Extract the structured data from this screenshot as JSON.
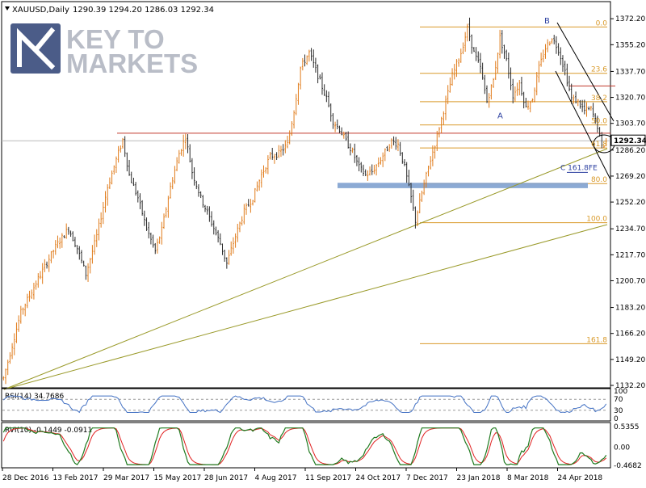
{
  "header": {
    "symbol": "XAUUSD,Daily",
    "ohlc": "1290.39 1294.20 1286.03 1292.34"
  },
  "logo": {
    "line1": "KEY TO",
    "line2": "MARKETS"
  },
  "colors": {
    "background": "#ffffff",
    "bull": "#e07b1a",
    "bear": "#2a2a2a",
    "fib": "#d99a2a",
    "resistance": "#c0392b",
    "support_zone": "#7fa1cf",
    "trendline": "#9a9a2a",
    "channel": "#000000",
    "rsi": "#4472c4",
    "rvi_main": "#1f7a1f",
    "rvi_signal": "#e02020",
    "axis": "#000000",
    "logo_blue": "#2b3f73"
  },
  "chart_data": [
    {
      "type": "candlestick",
      "title": "XAUUSD,Daily",
      "ohlc_last": {
        "open": 1290.39,
        "high": 1294.2,
        "low": 1286.03,
        "close": 1292.34
      },
      "current_price": "1292.34",
      "ylim": [
        1132.2,
        1376.0
      ],
      "y_ticks": [
        "1372.20",
        "1355.20",
        "1337.70",
        "1320.70",
        "1303.70",
        "1286.20",
        "1269.20",
        "1252.20",
        "1234.70",
        "1217.70",
        "1200.70",
        "1183.20",
        "1166.20",
        "1149.20",
        "1132.20"
      ],
      "x_ticks": [
        "28 Dec 2016",
        "13 Feb 2017",
        "29 Mar 2017",
        "15 May 2017",
        "28 Jun 2017",
        "4 Aug 2017",
        "11 Sep 2017",
        "24 Oct 2017",
        "7 Dec 2017",
        "23 Jan 2018",
        "8 Mar 2018",
        "24 Apr 2018"
      ],
      "price_path": [
        [
          0,
          1137
        ],
        [
          8,
          1180
        ],
        [
          16,
          1202
        ],
        [
          24,
          1223
        ],
        [
          30,
          1235
        ],
        [
          34,
          1222
        ],
        [
          38,
          1205
        ],
        [
          43,
          1230
        ],
        [
          48,
          1262
        ],
        [
          52,
          1280
        ],
        [
          55,
          1293
        ],
        [
          58,
          1270
        ],
        [
          62,
          1255
        ],
        [
          66,
          1235
        ],
        [
          70,
          1220
        ],
        [
          73,
          1234
        ],
        [
          77,
          1262
        ],
        [
          81,
          1284
        ],
        [
          84,
          1295
        ],
        [
          87,
          1272
        ],
        [
          91,
          1255
        ],
        [
          95,
          1242
        ],
        [
          100,
          1225
        ],
        [
          103,
          1212
        ],
        [
          107,
          1230
        ],
        [
          111,
          1246
        ],
        [
          115,
          1255
        ],
        [
          119,
          1270
        ],
        [
          123,
          1282
        ],
        [
          127,
          1284
        ],
        [
          131,
          1290
        ],
        [
          134,
          1312
        ],
        [
          137,
          1340
        ],
        [
          141,
          1350
        ],
        [
          145,
          1335
        ],
        [
          149,
          1320
        ],
        [
          152,
          1305
        ],
        [
          155,
          1300
        ],
        [
          158,
          1292
        ],
        [
          161,
          1285
        ],
        [
          164,
          1275
        ],
        [
          167,
          1270
        ],
        [
          170,
          1272
        ],
        [
          173,
          1278
        ],
        [
          176,
          1285
        ],
        [
          179,
          1292
        ],
        [
          182,
          1290
        ],
        [
          185,
          1275
        ],
        [
          188,
          1255
        ],
        [
          190,
          1240
        ],
        [
          193,
          1258
        ],
        [
          196,
          1275
        ],
        [
          199,
          1290
        ],
        [
          203,
          1312
        ],
        [
          207,
          1335
        ],
        [
          211,
          1350
        ],
        [
          214,
          1366
        ],
        [
          217,
          1350
        ],
        [
          220,
          1340
        ],
        [
          223,
          1318
        ],
        [
          226,
          1332
        ],
        [
          229,
          1360
        ],
        [
          232,
          1345
        ],
        [
          235,
          1322
        ],
        [
          238,
          1330
        ],
        [
          241,
          1314
        ],
        [
          244,
          1320
        ],
        [
          247,
          1340
        ],
        [
          250,
          1353
        ],
        [
          253,
          1360
        ],
        [
          256,
          1352
        ],
        [
          259,
          1338
        ],
        [
          262,
          1320
        ],
        [
          265,
          1318
        ],
        [
          268,
          1312
        ],
        [
          271,
          1313
        ],
        [
          274,
          1302
        ],
        [
          276,
          1288
        ],
        [
          278,
          1292
        ]
      ],
      "fibonacci_levels": [
        {
          "label": "0.0",
          "price": 1366.8
        },
        {
          "label": "23.6",
          "price": 1336.5
        },
        {
          "label": "38.2",
          "price": 1317.9
        },
        {
          "label": "50.0",
          "price": 1302.7
        },
        {
          "label": "61.8",
          "price": 1287.6
        },
        {
          "label": "80.0",
          "price": 1264.3
        },
        {
          "label": "100.0",
          "price": 1238.7
        },
        {
          "label": "161.8",
          "price": 1159.5
        }
      ],
      "horizontal_resistance": 1297.3,
      "short_resistance": 1328.2,
      "support_zone": [
        1261.3,
        1264.8
      ],
      "annotations": [
        {
          "text": "B",
          "at_price": 1369.0
        },
        {
          "text": "A",
          "at_price": 1307.0
        },
        {
          "text": "C 161.8FE",
          "at_price": 1273.2
        }
      ]
    },
    {
      "type": "line",
      "title": "RSI(14) 34.7686",
      "indicator": "RSI(14)",
      "last_value": 34.7686,
      "ylim": [
        0,
        100
      ],
      "y_ticks": [
        "100",
        "70",
        "30",
        "0"
      ]
    },
    {
      "type": "line",
      "title": "RVI(10) -0.1449 -0.0911",
      "indicator": "RVI(10)",
      "main_last": -0.1449,
      "signal_last": -0.0911,
      "y_ticks": [
        "0.5355",
        "0.00",
        "-0.4682"
      ]
    }
  ]
}
